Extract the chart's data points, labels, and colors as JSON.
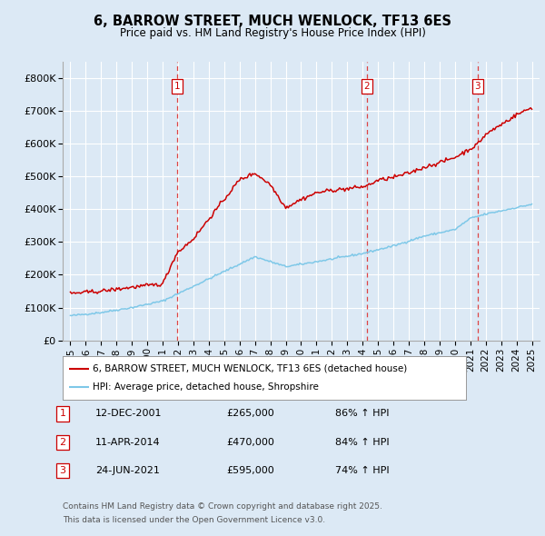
{
  "title": "6, BARROW STREET, MUCH WENLOCK, TF13 6ES",
  "subtitle": "Price paid vs. HM Land Registry's House Price Index (HPI)",
  "background_color": "#dce9f5",
  "red_line_label": "6, BARROW STREET, MUCH WENLOCK, TF13 6ES (detached house)",
  "blue_line_label": "HPI: Average price, detached house, Shropshire",
  "footer_line1": "Contains HM Land Registry data © Crown copyright and database right 2025.",
  "footer_line2": "This data is licensed under the Open Government Licence v3.0.",
  "transactions": [
    {
      "id": 1,
      "date": "12-DEC-2001",
      "price": 265000,
      "hpi": "86% ↑ HPI",
      "year": 2001.95
    },
    {
      "id": 2,
      "date": "11-APR-2014",
      "price": 470000,
      "hpi": "84% ↑ HPI",
      "year": 2014.28
    },
    {
      "id": 3,
      "date": "24-JUN-2021",
      "price": 595000,
      "hpi": "74% ↑ HPI",
      "year": 2021.48
    }
  ],
  "ylim": [
    0,
    850000
  ],
  "xlim_start": 1994.5,
  "xlim_end": 2025.5,
  "yticks": [
    0,
    100000,
    200000,
    300000,
    400000,
    500000,
    600000,
    700000,
    800000
  ],
  "ytick_labels": [
    "£0",
    "£100K",
    "£200K",
    "£300K",
    "£400K",
    "£500K",
    "£600K",
    "£700K",
    "£800K"
  ],
  "xticks": [
    1995,
    1996,
    1997,
    1998,
    1999,
    2000,
    2001,
    2002,
    2003,
    2004,
    2005,
    2006,
    2007,
    2008,
    2009,
    2010,
    2011,
    2012,
    2013,
    2014,
    2015,
    2016,
    2017,
    2018,
    2019,
    2020,
    2021,
    2022,
    2023,
    2024,
    2025
  ],
  "red_color": "#cc0000",
  "blue_color": "#7ec8e8",
  "vline_color": "#dd4444"
}
